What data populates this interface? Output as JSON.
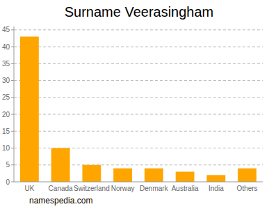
{
  "chart_data": {
    "type": "bar",
    "title": "Surname Veerasingham",
    "categories": [
      "UK",
      "Canada",
      "Switzerland",
      "Norway",
      "Denmark",
      "Australia",
      "India",
      "Others"
    ],
    "values": [
      43,
      10,
      5,
      4,
      4,
      3,
      2,
      4
    ],
    "color": "#ffa500",
    "ylim": [
      0,
      46
    ],
    "yticks": [
      0,
      5,
      10,
      15,
      20,
      25,
      30,
      35,
      40,
      45
    ],
    "grid": true,
    "annotations": [
      "namespedia.com"
    ]
  }
}
